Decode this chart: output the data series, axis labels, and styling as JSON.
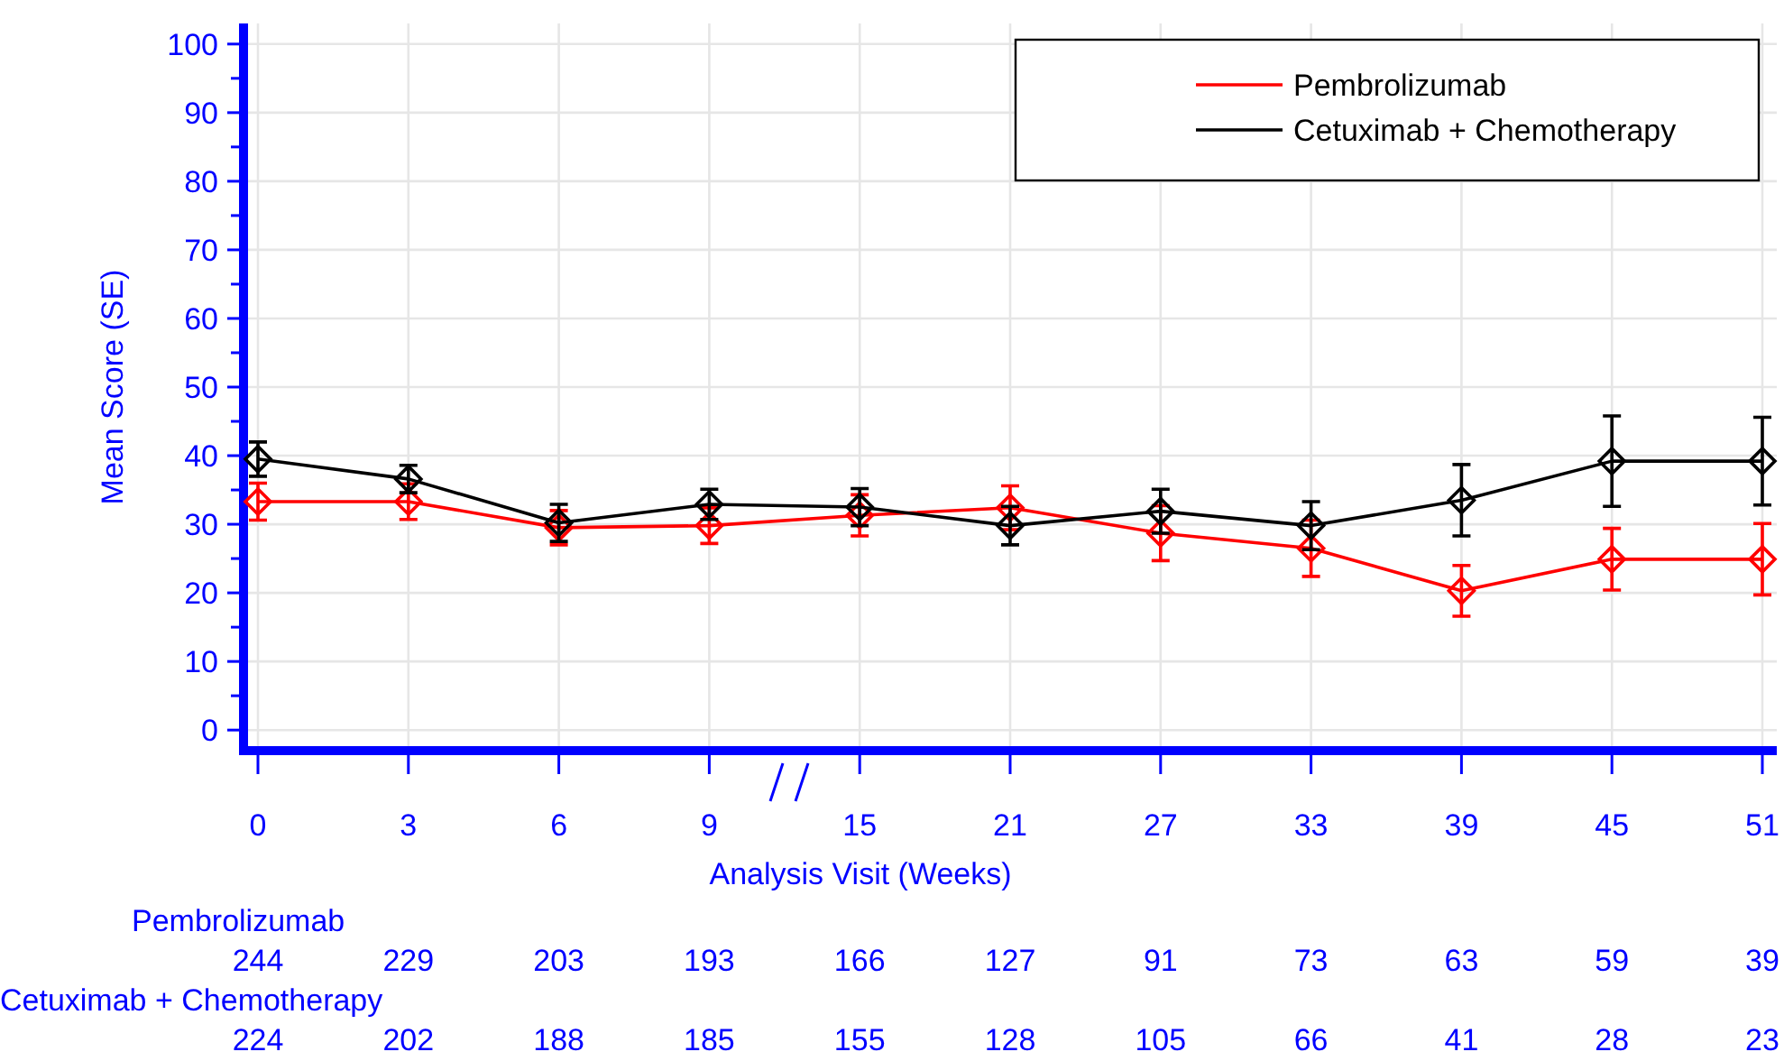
{
  "chart_data": {
    "type": "line",
    "xlabel": "Analysis Visit (Weeks)",
    "ylabel": "Mean Score (SE)",
    "categories": [
      "0",
      "3",
      "6",
      "9",
      "15",
      "21",
      "27",
      "33",
      "39",
      "45",
      "51"
    ],
    "ylim": [
      -3,
      103
    ],
    "yticks": [
      0,
      {
        "value": 5,
        "label": null
      },
      10,
      {
        "value": 15,
        "label": null
      },
      20,
      {
        "value": 25,
        "label": null
      },
      30,
      {
        "value": 35,
        "label": null
      },
      40,
      {
        "value": 45,
        "label": null
      },
      50,
      {
        "value": 55,
        "label": null
      },
      60,
      {
        "value": 65,
        "label": null
      },
      70,
      {
        "value": 75,
        "label": null
      },
      80,
      {
        "value": 85,
        "label": null
      },
      90,
      {
        "value": 95,
        "label": null
      },
      100
    ],
    "grid": true,
    "legend": "top right",
    "marker": "diamond",
    "line_style": "solid",
    "series": [
      {
        "name": "Pembrolizumab",
        "color": "#ff0000",
        "values": [
          33.3,
          33.3,
          29.5,
          29.8,
          31.3,
          32.4,
          28.7,
          26.5,
          20.3,
          24.9,
          24.9
        ],
        "errors": [
          2.7,
          2.6,
          2.5,
          2.6,
          3,
          3.2,
          4,
          4.1,
          3.7,
          4.5,
          5.2
        ]
      },
      {
        "name": "Cetuximab + Chemotherapy",
        "color": "#000000",
        "values": [
          39.5,
          36.6,
          30.2,
          32.9,
          32.5,
          29.8,
          31.9,
          29.8,
          33.5,
          39.2,
          39.2
        ],
        "errors": [
          2.5,
          2,
          2.7,
          2.2,
          2.7,
          2.8,
          3.2,
          3.5,
          5.2,
          6.6,
          6.4
        ]
      }
    ],
    "annotations": [
      "Pembrolizumab",
      "244",
      "229",
      "203",
      "193",
      "166",
      "127",
      "91",
      "73",
      "63",
      "59",
      "39",
      "Cetuximab + Chemotherapy",
      "224",
      "202",
      "188",
      "185",
      "155",
      "128",
      "105",
      "66",
      "41",
      "28",
      "23"
    ]
  }
}
